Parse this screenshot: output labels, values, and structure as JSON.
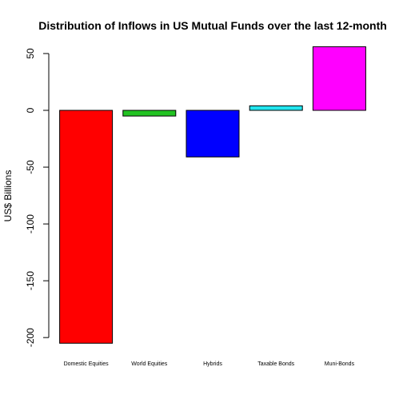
{
  "chart_data": {
    "type": "bar",
    "title": "Distribution of Inflows in US Mutual Funds  over the last 12-month",
    "xlabel": "",
    "ylabel": "US$ Billions",
    "ylim": [
      -205,
      55
    ],
    "yticks": [
      50,
      0,
      -50,
      -100,
      -150,
      -200
    ],
    "categories": [
      "Domestic Equities",
      "World Equities",
      "Hybrids",
      "Taxable Bonds",
      "Muni-Bonds"
    ],
    "values": [
      -205,
      -5,
      -41,
      4,
      56
    ],
    "colors": [
      "#ff0000",
      "#22c322",
      "#0000ff",
      "#22e5ee",
      "#ff00ff"
    ],
    "grid": false,
    "legend": "none"
  }
}
